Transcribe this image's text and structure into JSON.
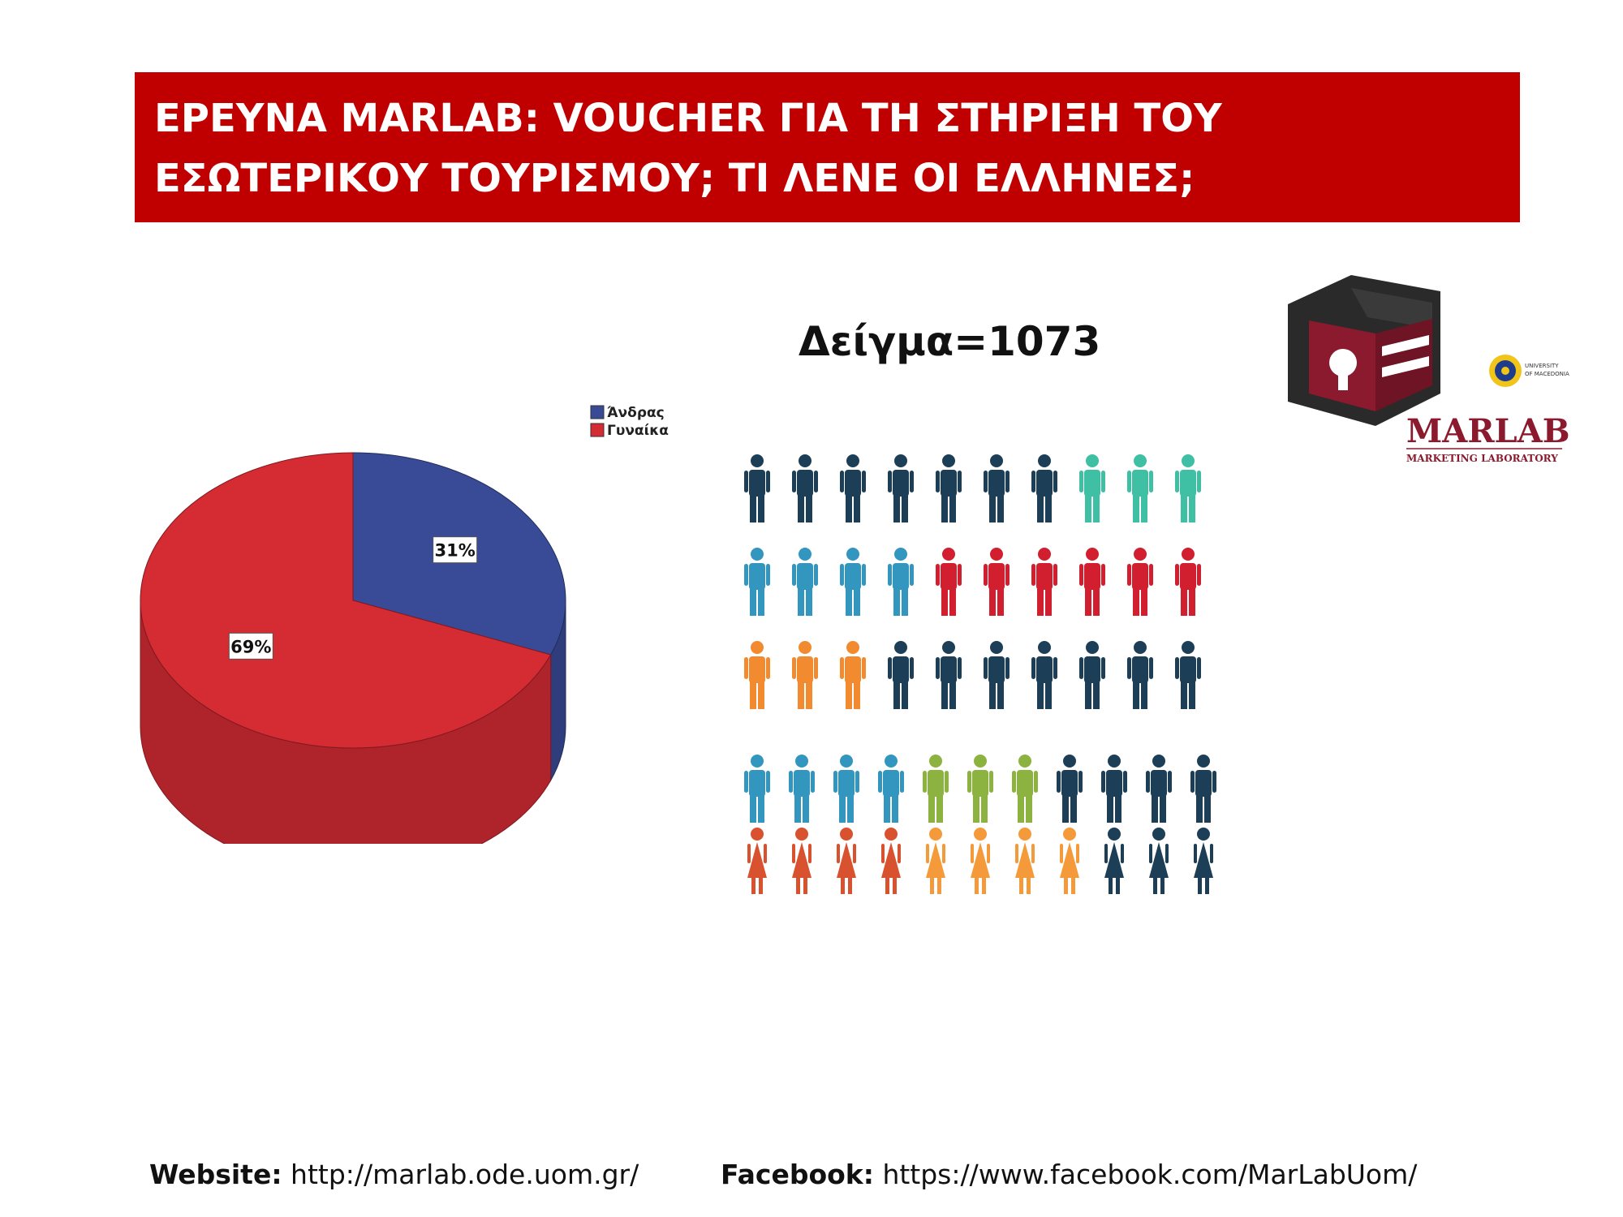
{
  "title": {
    "line1": "ΕΡΕΥΝΑ MARLAB: VOUCHER ΓΙΑ ΤΗ ΣΤΗΡΙΞΗ ΤΟΥ",
    "line2": "ΕΣΩΤΕΡΙΚΟΥ ΤΟΥΡΙΣΜΟΥ; ΤΙ ΛΕΝΕ ΟΙ ΕΛΛΗΝΕΣ;"
  },
  "sample_label": "Δείγμα=1073",
  "chart_data": {
    "type": "pie",
    "categories": [
      "Άνδρας",
      "Γυναίκα"
    ],
    "values": [
      31,
      69
    ],
    "labels": [
      "31%",
      "69%"
    ],
    "colors": [
      "#394b97",
      "#d52b33"
    ],
    "legend_position": "top-right",
    "three_d": true
  },
  "logo": {
    "name": "MARLAB",
    "subtitle": "MARKETING LABORATORY",
    "university": "UNIVERSITY OF MACEDONIA",
    "accent": "#8b1a2e",
    "icon": "padlock-icon"
  },
  "infographic": {
    "icon": "person-icon",
    "rows": [
      [
        "#1c3e57",
        "#1c3e57",
        "#1c3e57",
        "#1c3e57",
        "#1c3e57",
        "#1c3e57",
        "#1c3e57",
        "#3fbfa3",
        "#3fbfa3",
        "#3fbfa3"
      ],
      [
        "#3396be",
        "#3396be",
        "#3396be",
        "#3396be",
        "#d21f2f",
        "#d21f2f",
        "#d21f2f",
        "#d21f2f",
        "#d21f2f",
        "#d21f2f"
      ],
      [
        "#f28a2f",
        "#f28a2f",
        "#f28a2f",
        "#1c3e57",
        "#1c3e57",
        "#1c3e57",
        "#1c3e57",
        "#1c3e57",
        "#1c3e57",
        "#1c3e57"
      ],
      [
        "#3396be",
        "#3396be",
        "#3396be",
        "#3396be",
        "#8cb33f",
        "#8cb33f",
        "#8cb33f",
        "#1c3e57",
        "#1c3e57",
        "#1c3e57",
        "#1c3e57"
      ],
      [
        "#d9522f",
        "#d9522f",
        "#d9522f",
        "#d9522f",
        "#f59a3a",
        "#f59a3a",
        "#f59a3a",
        "#f59a3a",
        "#1c3e57",
        "#1c3e57",
        "#1c3e57"
      ]
    ],
    "row_genders": [
      "male",
      "male",
      "male",
      "male",
      "female"
    ]
  },
  "footer": {
    "website_label": "Website:",
    "website_url": "http://marlab.ode.uom.gr/",
    "facebook_label": "Facebook:",
    "facebook_url": "https://www.facebook.com/MarLabUom/"
  }
}
